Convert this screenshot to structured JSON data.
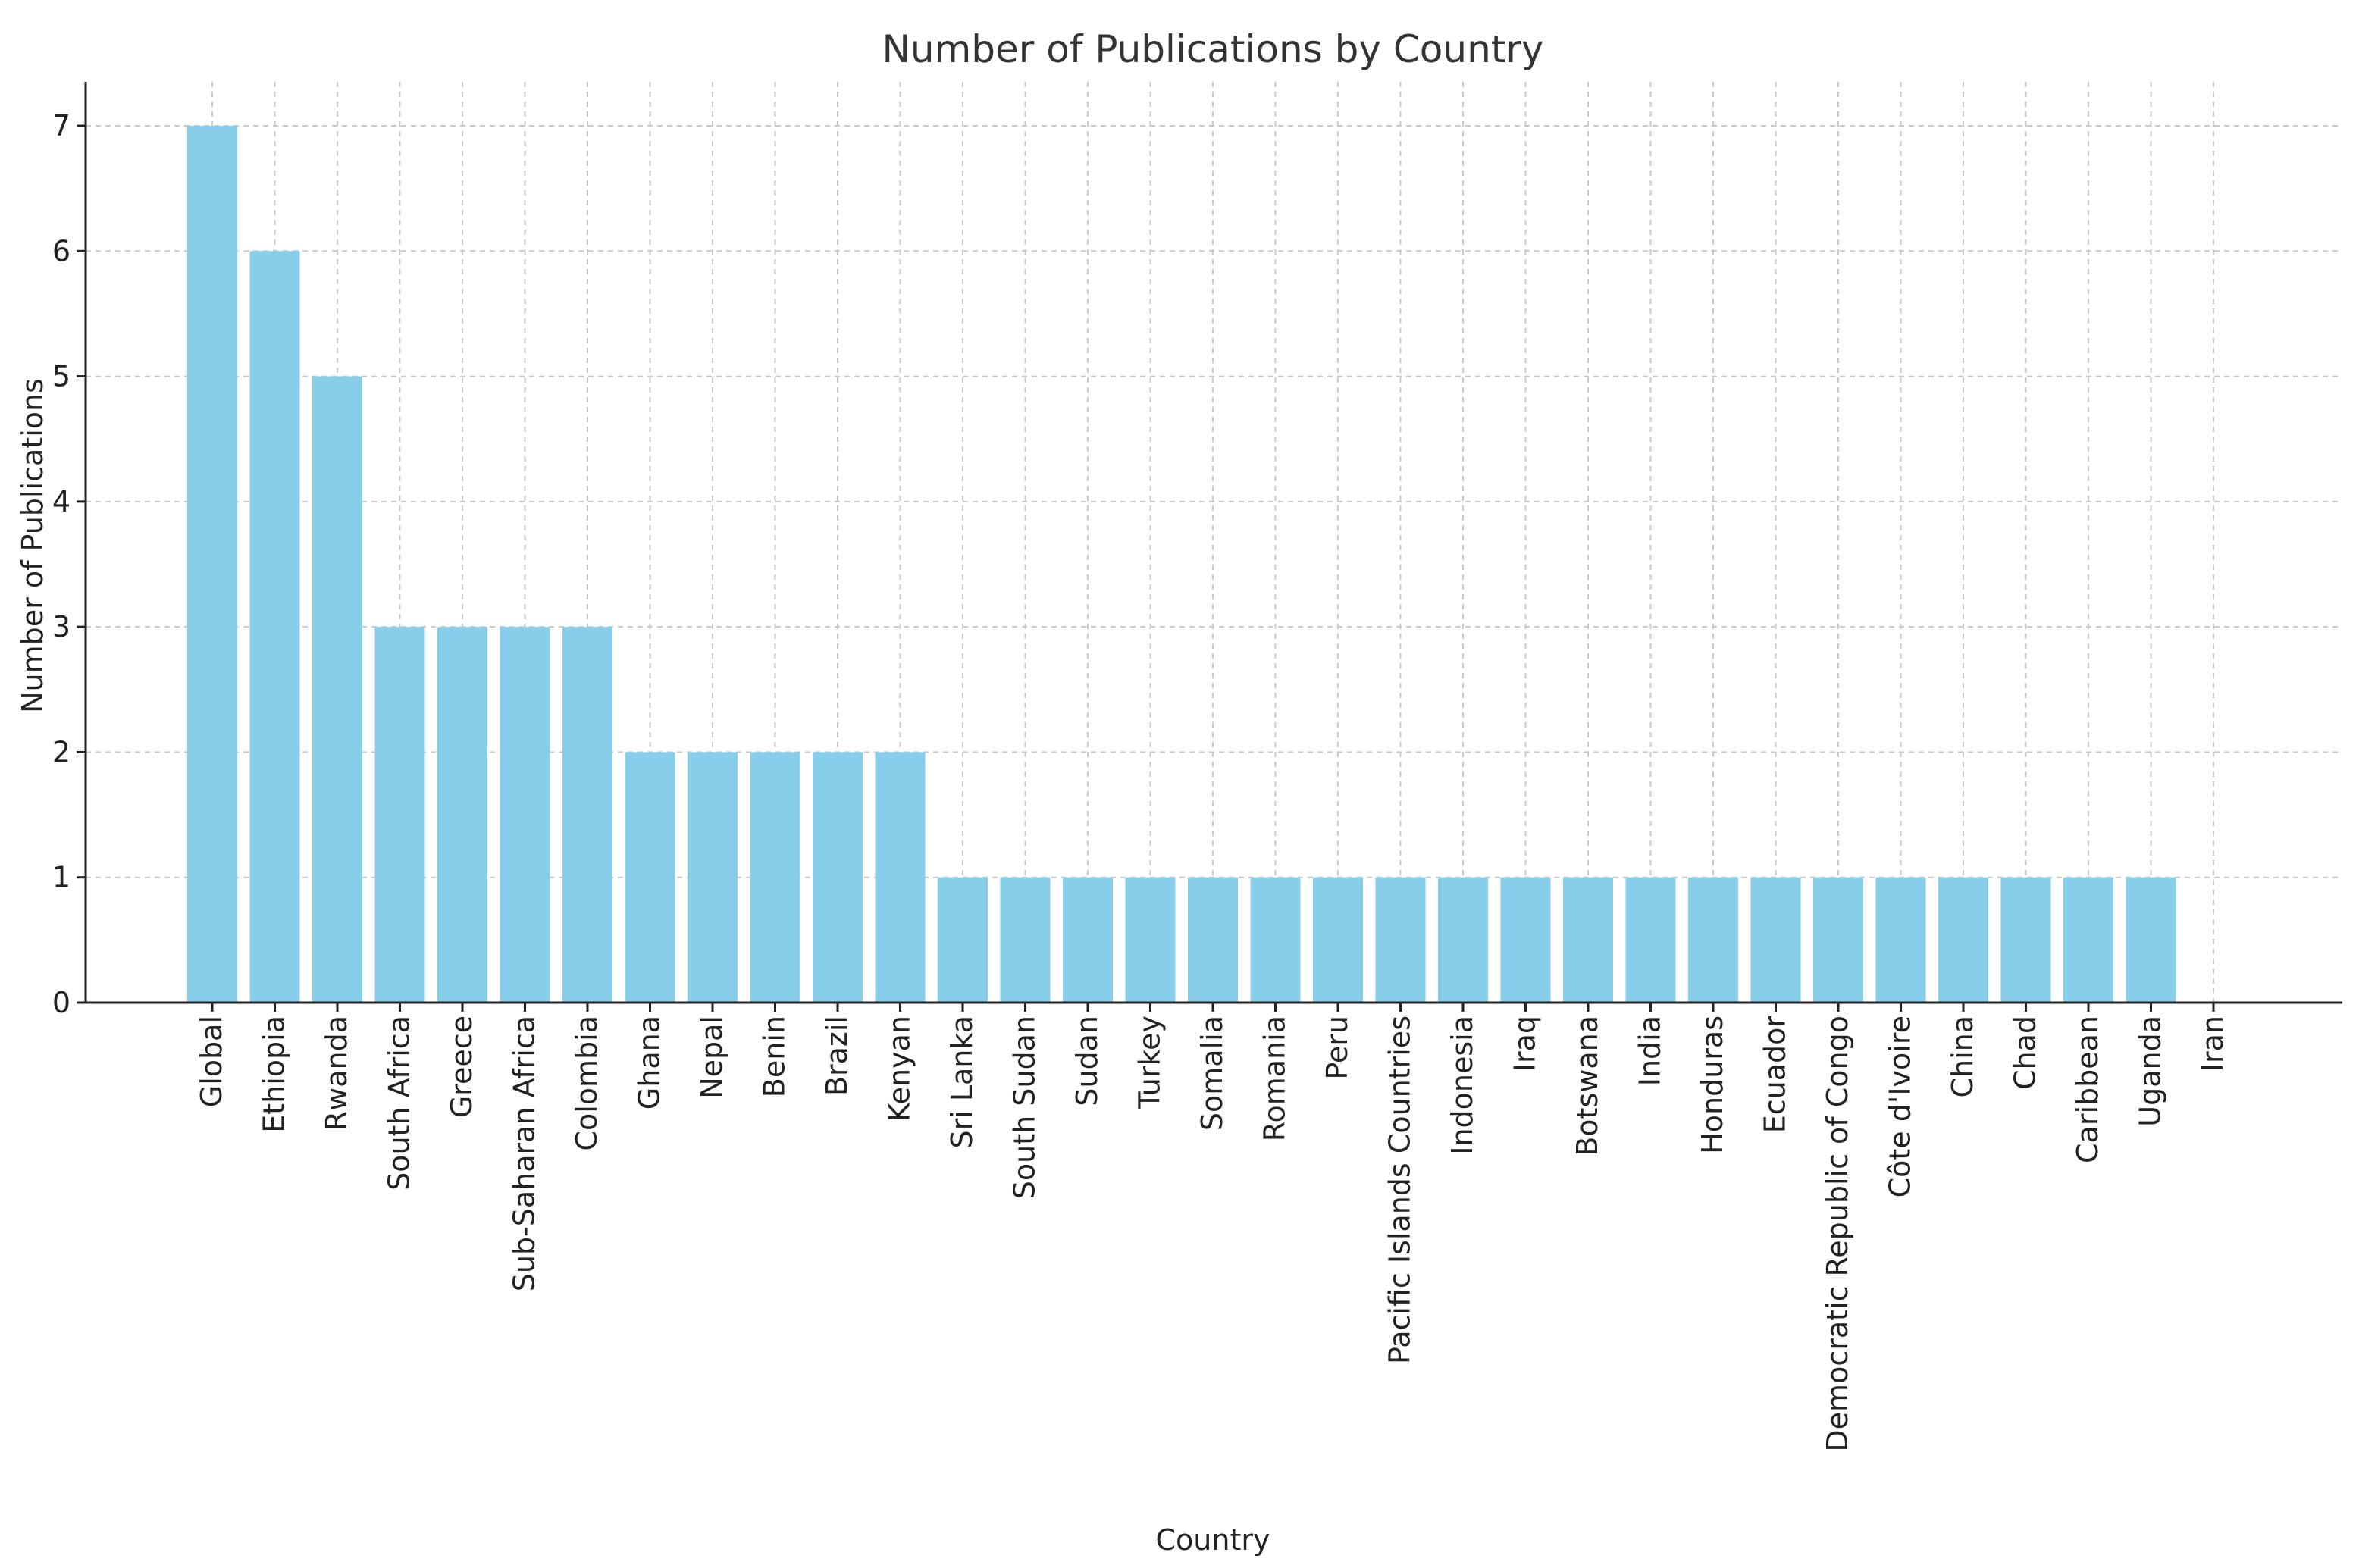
{
  "chart_data": {
    "type": "bar",
    "title": "Number of Publications by Country",
    "xlabel": "Country",
    "ylabel": "Number of Publications",
    "ylim": [
      0,
      7
    ],
    "yticks": [
      0,
      1,
      2,
      3,
      4,
      5,
      6,
      7
    ],
    "grid": true,
    "bar_color": "#87CEEB",
    "categories": [
      "Global",
      "Ethiopia",
      "Rwanda",
      "South Africa",
      "Greece",
      "Sub-Saharan Africa",
      "Colombia",
      "Ghana",
      "Nepal",
      "Benin",
      "Brazil",
      "Kenyan",
      "Sri Lanka",
      "South Sudan",
      "Sudan",
      "Turkey",
      "Somalia",
      "Romania",
      "Peru",
      "Pacific Islands Countries",
      "Indonesia",
      "Iraq",
      "Botswana",
      "India",
      "Honduras",
      "Ecuador",
      "Democratic Republic of Congo",
      "Côte d'Ivoire",
      "China",
      "Chad",
      "Caribbean",
      "Uganda",
      "Iran"
    ],
    "values": [
      7,
      6,
      5,
      3,
      3,
      3,
      3,
      2,
      2,
      2,
      2,
      2,
      1,
      1,
      1,
      1,
      1,
      1,
      1,
      1,
      1,
      1,
      1,
      1,
      1,
      1,
      1,
      1,
      1,
      1,
      1,
      1,
      0
    ]
  }
}
